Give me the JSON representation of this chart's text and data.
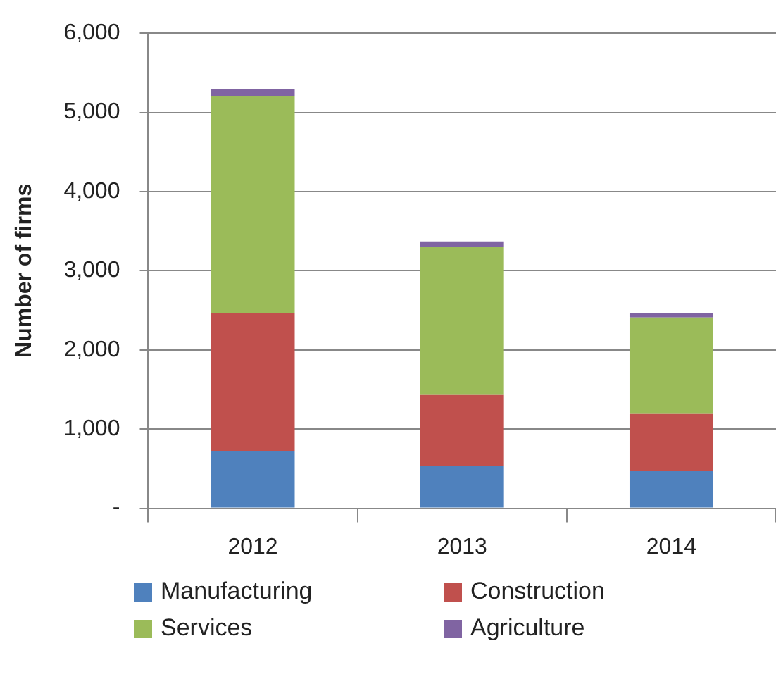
{
  "chart_data": {
    "type": "bar",
    "stacked": true,
    "ylabel": "Number of firms",
    "categories": [
      "2012",
      "2013",
      "2014"
    ],
    "series": [
      {
        "name": "Manufacturing",
        "color": "#4f81bd",
        "values": [
          720,
          530,
          470
        ]
      },
      {
        "name": "Construction",
        "color": "#c0504d",
        "values": [
          1740,
          900,
          720
        ]
      },
      {
        "name": "Services",
        "color": "#9bbb59",
        "values": [
          2750,
          1870,
          1220
        ]
      },
      {
        "name": "Agriculture",
        "color": "#8064a2",
        "values": [
          90,
          70,
          60
        ]
      }
    ],
    "ylim": [
      0,
      6000
    ],
    "yticks": [
      {
        "value": 0,
        "label": "-"
      },
      {
        "value": 1000,
        "label": "1,000"
      },
      {
        "value": 2000,
        "label": "2,000"
      },
      {
        "value": 3000,
        "label": "3,000"
      },
      {
        "value": 4000,
        "label": "4,000"
      },
      {
        "value": 5000,
        "label": "5,000"
      },
      {
        "value": 6000,
        "label": "6,000"
      }
    ],
    "grid": "y",
    "legend": "bottom"
  }
}
